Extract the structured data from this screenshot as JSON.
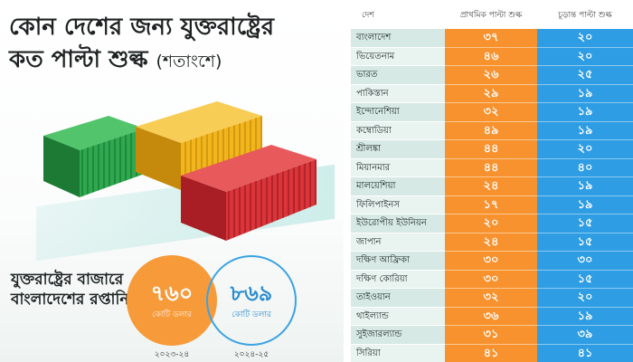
{
  "headline": {
    "line1": "কোন দেশের জন্য যুক্তরাষ্ট্রের",
    "line2": "কত পাল্টা শুল্ক",
    "line2_sub": "(শতাংশে)"
  },
  "export": {
    "label": "যুক্তরাষ্ট্রের বাজারে বাংলাদেশের রপ্তানি",
    "circles": [
      {
        "value": "৭৬০",
        "unit": "কোটি ডলার",
        "year": "২০২৩-২৪",
        "color": "#f79a3a"
      },
      {
        "value": "৮৬৯",
        "unit": "কোটি ডলার",
        "year": "২০২৪-২৫",
        "color": "#3ba3e2"
      }
    ]
  },
  "table": {
    "headers": {
      "country": "দেশ",
      "initial": "প্রাথমিক পাল্টা শুল্ক",
      "final": "চূড়ান্ত পাল্টা শুল্ক"
    },
    "rows": [
      {
        "country": "বাংলাদেশ",
        "initial": "৩৭",
        "final": "২০"
      },
      {
        "country": "ভিয়েতনাম",
        "initial": "৪৬",
        "final": "২০"
      },
      {
        "country": "ভারত",
        "initial": "২৬",
        "final": "২৫"
      },
      {
        "country": "পাকিস্তান",
        "initial": "২৯",
        "final": "১৯"
      },
      {
        "country": "ইন্দোনেশিয়া",
        "initial": "৩২",
        "final": "১৯"
      },
      {
        "country": "কম্বোডিয়া",
        "initial": "৪৯",
        "final": "১৯"
      },
      {
        "country": "শ্রীলঙ্কা",
        "initial": "৪৪",
        "final": "২০"
      },
      {
        "country": "মিয়ানমার",
        "initial": "৪৪",
        "final": "৪০"
      },
      {
        "country": "মালয়েশিয়া",
        "initial": "২৪",
        "final": "১৯"
      },
      {
        "country": "ফিলিপাইনস",
        "initial": "১৭",
        "final": "১৯"
      },
      {
        "country": "ইউরোপীয় ইউনিয়ন",
        "initial": "২০",
        "final": "১৫"
      },
      {
        "country": "জাপান",
        "initial": "২৪",
        "final": "১৫"
      },
      {
        "country": "দক্ষিণ আফ্রিকা",
        "initial": "৩০",
        "final": "৩০"
      },
      {
        "country": "দক্ষিণ কোরিয়া",
        "initial": "৩০",
        "final": "১৫"
      },
      {
        "country": "তাইওয়ান",
        "initial": "৩২",
        "final": "২০"
      },
      {
        "country": "থাইল্যান্ড",
        "initial": "৩৬",
        "final": "১৯"
      },
      {
        "country": "সুইজারল্যান্ড",
        "initial": "৩১",
        "final": "৩৯"
      },
      {
        "country": "সিরিয়া",
        "initial": "৪১",
        "final": "৪১"
      }
    ]
  },
  "colors": {
    "orange": "#f7922e",
    "blue": "#2e9de4",
    "green_container": "#2fa84f",
    "yellow_container": "#f2b51e",
    "red_container": "#d9353a",
    "country_cell": "#d6e9e4"
  }
}
